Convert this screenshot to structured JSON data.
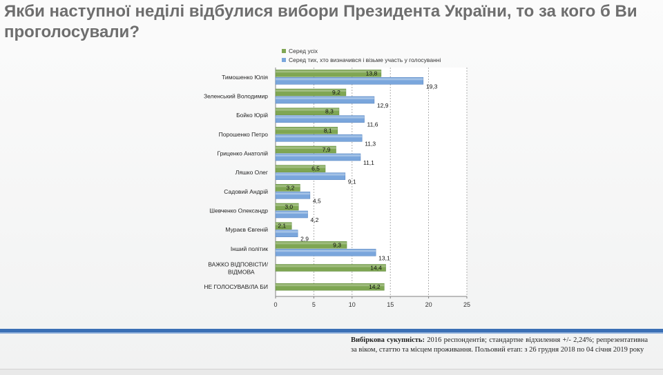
{
  "page": {
    "title": "Якби наступної неділі відбулися вибори Президента України, то за кого б Ви проголосували?",
    "footnote_label": "Вибіркова сукупність:",
    "footnote_text": "2016 респондентів; стандартне відхилення +/- 2,24%; репрезентативна за віком, статтю та місцем проживання. Польовий етап: з 26 грудня 2018 по 04 січня 2019 року"
  },
  "colors": {
    "series_all": "#7fa653",
    "series_decided": "#7aa6dc",
    "title": "#6e6e6e",
    "band": "#3a6fb5"
  },
  "chart_data": {
    "type": "bar",
    "orientation": "horizontal",
    "categories": [
      "Тимошенко Юлія",
      "Зеленський Володимир",
      "Бойко Юрій",
      "Порошенко Петро",
      "Гриценко Анатолій",
      "Ляшко Олег",
      "Садовий Андрій",
      "Шевченко Олександр",
      "Мураєв Євгеній",
      "Інший політик",
      "ВАЖКО ВІДПОВІСТИ/ ВІДМОВА",
      "НЕ ГОЛОСУВАВ/ЛА БИ"
    ],
    "series": [
      {
        "name": "Серед усіх",
        "values": [
          13.8,
          9.2,
          8.3,
          8.1,
          7.9,
          6.5,
          3.2,
          3.0,
          2.1,
          9.3,
          14.4,
          14.2
        ],
        "labels": [
          "13,8",
          "9,2",
          "8,3",
          "8,1",
          "7,9",
          "6,5",
          "3,2",
          "3,0",
          "2,1",
          "9,3",
          "14,4",
          "14,2"
        ]
      },
      {
        "name": "Серед тих, хто визначився і візьме участь у голосуванні",
        "values": [
          19.3,
          12.9,
          11.6,
          11.3,
          11.1,
          9.1,
          4.5,
          4.2,
          2.9,
          13.1,
          null,
          null
        ],
        "labels": [
          "19,3",
          "12,9",
          "11,6",
          "11,3",
          "11,1",
          "9,1",
          "4,5",
          "4,2",
          "2,9",
          "13,1",
          "",
          ""
        ]
      }
    ],
    "xlim": [
      0,
      25
    ],
    "xticks": [
      0,
      5,
      10,
      15,
      20,
      25
    ],
    "xtick_labels": [
      "0",
      "5",
      "10",
      "15",
      "20",
      "25"
    ],
    "grid": "dashed vertical at 5, 10, 15, 20",
    "legend": "top",
    "xlabel": "",
    "ylabel": ""
  }
}
